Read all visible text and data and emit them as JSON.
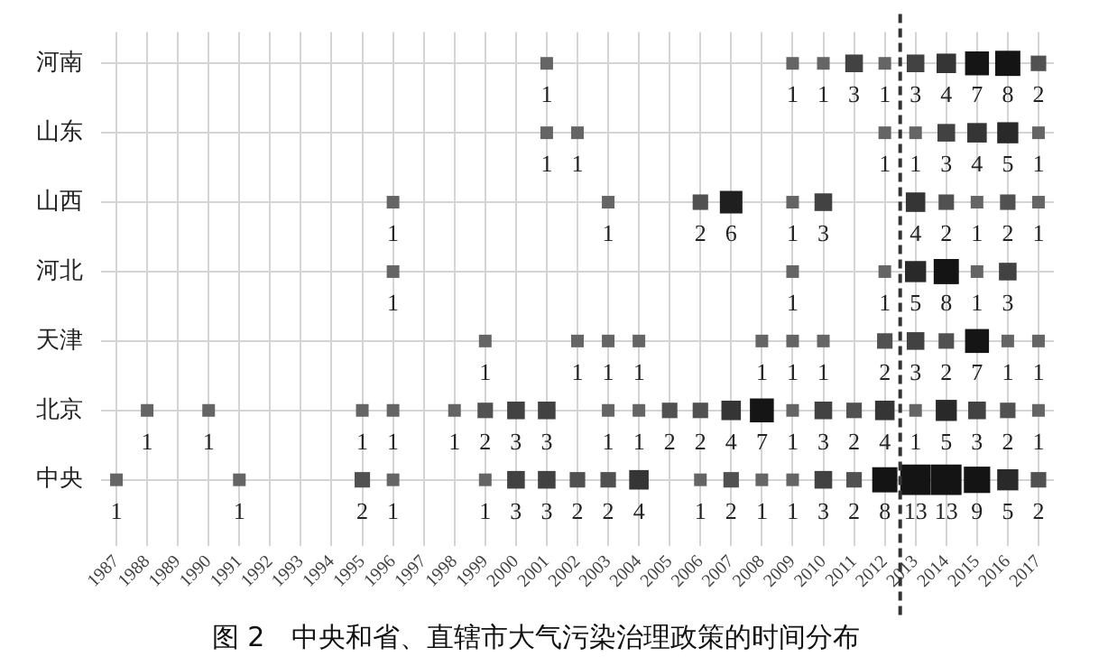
{
  "chart_data": {
    "type": "heatmap",
    "title": "图 2　中央和省、直辖市大气污染治理政策的时间分布",
    "categories": [
      "1987",
      "1988",
      "1989",
      "1990",
      "1991",
      "1992",
      "1993",
      "1994",
      "1995",
      "1996",
      "1997",
      "1998",
      "1999",
      "2000",
      "2001",
      "2002",
      "2003",
      "2004",
      "2005",
      "2006",
      "2007",
      "2008",
      "2009",
      "2010",
      "2011",
      "2012",
      "2013",
      "2014",
      "2015",
      "2016",
      "2017"
    ],
    "y_categories": [
      "河南",
      "山东",
      "山西",
      "河北",
      "天津",
      "北京",
      "中央"
    ],
    "cells": [
      [
        null,
        null,
        null,
        null,
        null,
        null,
        null,
        null,
        null,
        null,
        null,
        null,
        null,
        null,
        1,
        null,
        null,
        null,
        null,
        null,
        null,
        null,
        1,
        1,
        3,
        1,
        3,
        4,
        7,
        8,
        2
      ],
      [
        null,
        null,
        null,
        null,
        null,
        null,
        null,
        null,
        null,
        null,
        null,
        null,
        null,
        null,
        1,
        1,
        null,
        null,
        null,
        null,
        null,
        null,
        null,
        null,
        null,
        1,
        1,
        3,
        4,
        5,
        1
      ],
      [
        null,
        null,
        null,
        null,
        null,
        null,
        null,
        null,
        null,
        1,
        null,
        null,
        null,
        null,
        null,
        null,
        1,
        null,
        null,
        2,
        6,
        null,
        1,
        3,
        null,
        null,
        4,
        2,
        1,
        2,
        1
      ],
      [
        null,
        null,
        null,
        null,
        null,
        null,
        null,
        null,
        null,
        1,
        null,
        null,
        null,
        null,
        null,
        null,
        null,
        null,
        null,
        null,
        null,
        null,
        1,
        null,
        null,
        1,
        5,
        8,
        1,
        3,
        null
      ],
      [
        null,
        null,
        null,
        null,
        null,
        null,
        null,
        null,
        null,
        null,
        null,
        null,
        1,
        null,
        null,
        1,
        1,
        1,
        null,
        null,
        null,
        1,
        1,
        1,
        null,
        2,
        3,
        2,
        7,
        1,
        1
      ],
      [
        null,
        1,
        null,
        1,
        null,
        null,
        null,
        null,
        1,
        1,
        null,
        1,
        2,
        3,
        3,
        null,
        1,
        1,
        2,
        2,
        4,
        7,
        1,
        3,
        2,
        4,
        1,
        5,
        3,
        2,
        1
      ],
      [
        1,
        null,
        null,
        null,
        1,
        null,
        null,
        null,
        2,
        1,
        null,
        null,
        1,
        3,
        3,
        2,
        2,
        4,
        null,
        1,
        2,
        1,
        1,
        3,
        2,
        8,
        13,
        13,
        9,
        5,
        2
      ]
    ],
    "ref_lines": [
      {
        "axis": "x",
        "value": "2013",
        "line_style": "dashed",
        "color": "#333333"
      }
    ],
    "data_labels": true,
    "grid": true
  }
}
